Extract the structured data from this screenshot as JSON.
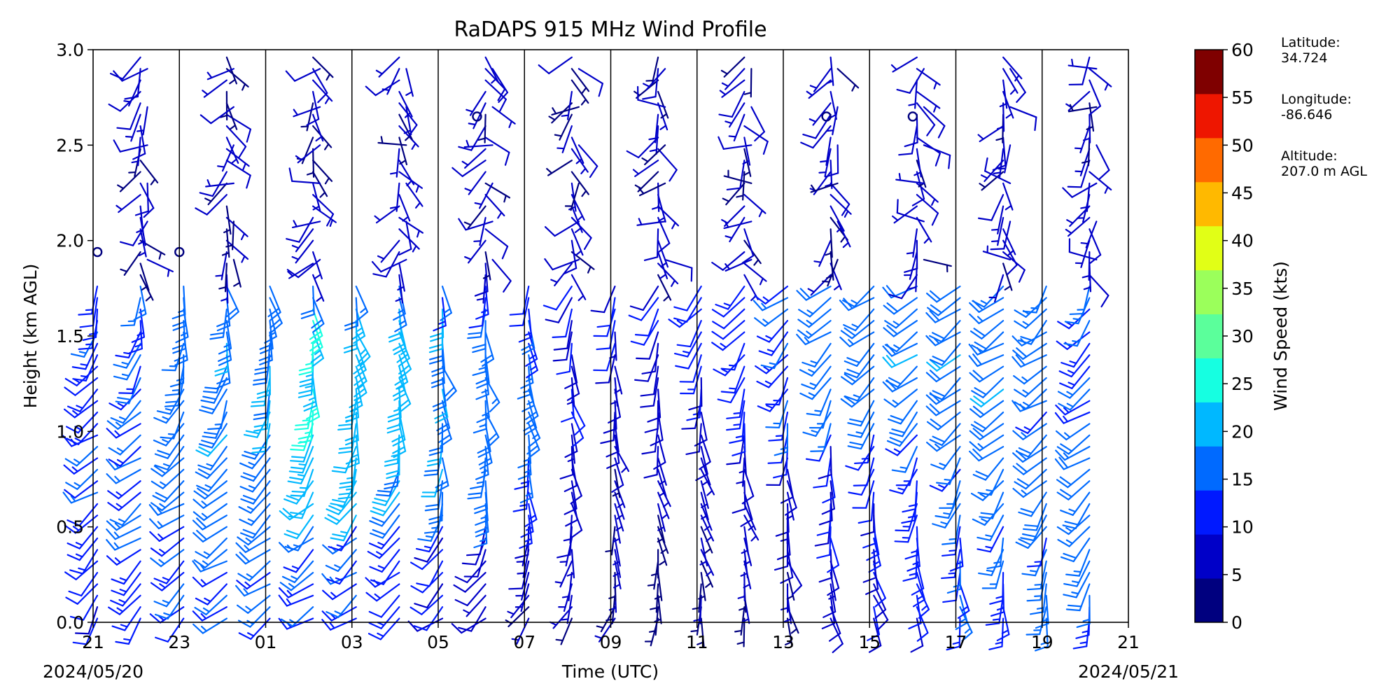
{
  "chart_data": {
    "type": "wind_barb_profile",
    "title": "RaDAPS 915 MHz Wind Profile",
    "xlabel": "Time (UTC)",
    "ylabel": "Height (km AGL)",
    "x_tick_labels": [
      "21",
      "23",
      "01",
      "03",
      "05",
      "07",
      "09",
      "11",
      "13",
      "15",
      "17",
      "19",
      "21"
    ],
    "x_hours": [
      0,
      2,
      4,
      6,
      8,
      10,
      12,
      14,
      16,
      18,
      20,
      22,
      24
    ],
    "xlim_hours": [
      0,
      24
    ],
    "date_start": "2024/05/20",
    "date_end": "2024/05/21",
    "y_ticks": [
      "0.0",
      "0.5",
      "1.0",
      "1.5",
      "2.0",
      "2.5",
      "3.0"
    ],
    "ylim": [
      0.0,
      3.0
    ],
    "profile_divider_hours": [
      2,
      4,
      6,
      8,
      10,
      12,
      14,
      16,
      18,
      20,
      22
    ],
    "barb_columns_hours": [
      0,
      1,
      2,
      3,
      4,
      5,
      6,
      7,
      8,
      9,
      10,
      11,
      12,
      13,
      14,
      15,
      16,
      17,
      18,
      19,
      20,
      21,
      22,
      23
    ],
    "colorbar": {
      "label": "Wind Speed (kts)",
      "ticks": [
        "0",
        "5",
        "10",
        "15",
        "20",
        "25",
        "30",
        "35",
        "40",
        "45",
        "50",
        "55",
        "60"
      ],
      "colors": [
        "#00007f",
        "#0000c8",
        "#0019ff",
        "#006aff",
        "#00b8ff",
        "#16ffe1",
        "#5bff9b",
        "#9bff5b",
        "#e1ff16",
        "#ffb900",
        "#ff6a00",
        "#ee1600",
        "#7f0000"
      ],
      "range": [
        0,
        60
      ]
    },
    "site_info": {
      "latitude_label": "Latitude:",
      "latitude_value": "34.724",
      "longitude_label": "Longitude:",
      "longitude_value": "-86.646",
      "altitude_label": "Altitude:",
      "altitude_value": "207.0 m AGL"
    }
  }
}
